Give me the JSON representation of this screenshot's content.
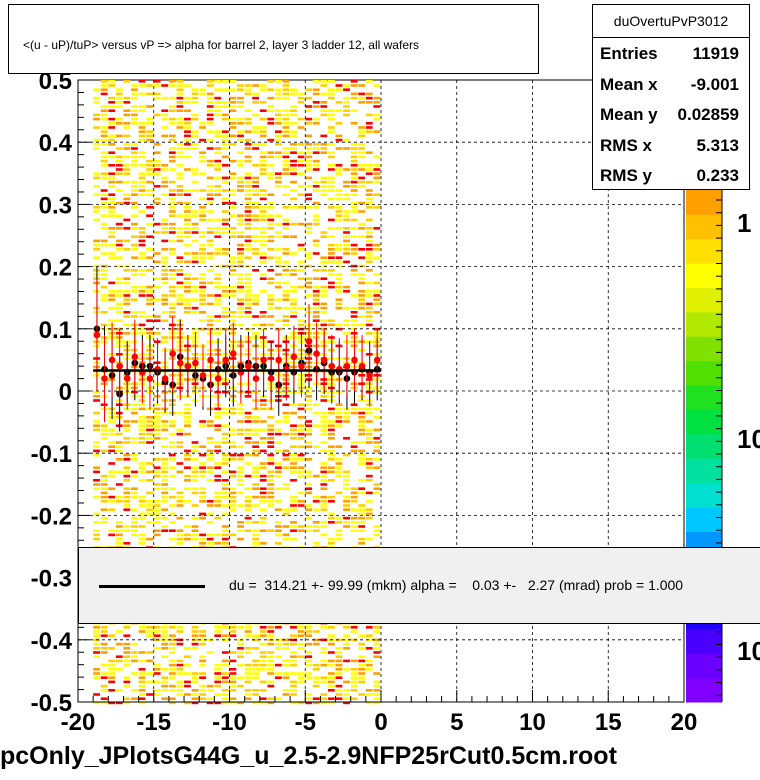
{
  "title": "<(u - uP)/tuP> versus   vP => alpha for barrel 2, layer 3 ladder 12, all wafers",
  "stats": {
    "name": "duOvertuPvP3012",
    "rows": [
      {
        "label": "Entries",
        "value": "11919"
      },
      {
        "label": "Mean x",
        "value": "-9.001"
      },
      {
        "label": "Mean y",
        "value": "0.02859"
      },
      {
        "label": "RMS x",
        "value": "5.313"
      },
      {
        "label": "RMS y",
        "value": "0.233"
      }
    ]
  },
  "legend_text": "du =  314.21 +- 99.99 (mkm) alpha =    0.03 +-   2.27 (mrad) prob = 1.000",
  "footer": "pcOnly_JPlotsG44G_u_2.5-2.9NFP25rCut0.5cm.root",
  "colors": {
    "fit_line": "#000000",
    "profile_black": "#000000",
    "profile_red": "#ff0000",
    "legend_bg": "#f0f0f0"
  },
  "chart_data": {
    "type": "heatmap",
    "xlim": [
      -20,
      20
    ],
    "ylim": [
      -0.5,
      0.5
    ],
    "x_ticks": [
      "-20",
      "-15",
      "-10",
      "-5",
      "0",
      "5",
      "10",
      "15",
      "20"
    ],
    "y_ticks": [
      "-0.5",
      "-0.4",
      "-0.3",
      "-0.2",
      "-0.1",
      "0",
      "0.1",
      "0.2",
      "0.3",
      "0.4",
      "0.5"
    ],
    "grid": true,
    "palette_labels": [
      "1",
      "10",
      "10"
    ],
    "occupied_x_range": [
      -19,
      0
    ],
    "fit": {
      "x": [
        -19,
        0
      ],
      "y": [
        0.033,
        0.033
      ]
    },
    "profile_black": [
      {
        "x": -18.75,
        "y": 0.1,
        "err": 0.1
      },
      {
        "x": -18.25,
        "y": 0.035,
        "err": 0.07
      },
      {
        "x": -17.75,
        "y": 0.025,
        "err": 0.07
      },
      {
        "x": -17.25,
        "y": -0.005,
        "err": 0.06
      },
      {
        "x": -16.75,
        "y": 0.03,
        "err": 0.05
      },
      {
        "x": -16.25,
        "y": 0.045,
        "err": 0.06
      },
      {
        "x": -15.75,
        "y": 0.04,
        "err": 0.05
      },
      {
        "x": -15.25,
        "y": 0.04,
        "err": 0.05
      },
      {
        "x": -14.75,
        "y": 0.03,
        "err": 0.05
      },
      {
        "x": -14.25,
        "y": 0.015,
        "err": 0.05
      },
      {
        "x": -13.75,
        "y": 0.01,
        "err": 0.05
      },
      {
        "x": -13.25,
        "y": 0.055,
        "err": 0.06
      },
      {
        "x": -12.75,
        "y": 0.04,
        "err": 0.05
      },
      {
        "x": -12.25,
        "y": 0.025,
        "err": 0.05
      },
      {
        "x": -11.75,
        "y": 0.02,
        "err": 0.05
      },
      {
        "x": -11.25,
        "y": 0.01,
        "err": 0.05
      },
      {
        "x": -10.75,
        "y": 0.035,
        "err": 0.05
      },
      {
        "x": -10.25,
        "y": 0.04,
        "err": 0.05
      },
      {
        "x": -9.75,
        "y": 0.025,
        "err": 0.05
      },
      {
        "x": -9.25,
        "y": 0.04,
        "err": 0.05
      },
      {
        "x": -8.75,
        "y": 0.045,
        "err": 0.05
      },
      {
        "x": -8.25,
        "y": 0.04,
        "err": 0.05
      },
      {
        "x": -7.75,
        "y": 0.04,
        "err": 0.05
      },
      {
        "x": -7.25,
        "y": 0.03,
        "err": 0.05
      },
      {
        "x": -6.75,
        "y": 0.01,
        "err": 0.05
      },
      {
        "x": -6.25,
        "y": 0.04,
        "err": 0.05
      },
      {
        "x": -5.75,
        "y": 0.03,
        "err": 0.05
      },
      {
        "x": -5.25,
        "y": 0.045,
        "err": 0.05
      },
      {
        "x": -4.75,
        "y": 0.065,
        "err": 0.06
      },
      {
        "x": -4.25,
        "y": 0.035,
        "err": 0.05
      },
      {
        "x": -3.75,
        "y": 0.045,
        "err": 0.05
      },
      {
        "x": -3.25,
        "y": 0.03,
        "err": 0.05
      },
      {
        "x": -2.75,
        "y": 0.03,
        "err": 0.05
      },
      {
        "x": -2.25,
        "y": 0.02,
        "err": 0.05
      },
      {
        "x": -1.75,
        "y": 0.03,
        "err": 0.05
      },
      {
        "x": -1.25,
        "y": 0.035,
        "err": 0.05
      },
      {
        "x": -0.75,
        "y": 0.03,
        "err": 0.05
      },
      {
        "x": -0.25,
        "y": 0.035,
        "err": 0.05
      }
    ],
    "profile_red": [
      {
        "x": -18.75,
        "y": 0.09,
        "err": 0.09
      },
      {
        "x": -18.25,
        "y": 0.02,
        "err": 0.07
      },
      {
        "x": -17.75,
        "y": 0.05,
        "err": 0.06
      },
      {
        "x": -17.25,
        "y": 0.04,
        "err": 0.06
      },
      {
        "x": -16.75,
        "y": 0.02,
        "err": 0.05
      },
      {
        "x": -16.25,
        "y": 0.055,
        "err": 0.06
      },
      {
        "x": -15.75,
        "y": 0.03,
        "err": 0.05
      },
      {
        "x": -15.25,
        "y": 0.02,
        "err": 0.05
      },
      {
        "x": -14.75,
        "y": 0.035,
        "err": 0.05
      },
      {
        "x": -14.25,
        "y": 0.02,
        "err": 0.05
      },
      {
        "x": -13.75,
        "y": 0.06,
        "err": 0.06
      },
      {
        "x": -13.25,
        "y": 0.045,
        "err": 0.06
      },
      {
        "x": -12.75,
        "y": 0.04,
        "err": 0.05
      },
      {
        "x": -12.25,
        "y": 0.045,
        "err": 0.05
      },
      {
        "x": -11.75,
        "y": 0.025,
        "err": 0.05
      },
      {
        "x": -11.25,
        "y": 0.05,
        "err": 0.05
      },
      {
        "x": -10.75,
        "y": 0.02,
        "err": 0.05
      },
      {
        "x": -10.25,
        "y": 0.05,
        "err": 0.05
      },
      {
        "x": -9.75,
        "y": 0.06,
        "err": 0.05
      },
      {
        "x": -9.25,
        "y": 0.03,
        "err": 0.05
      },
      {
        "x": -8.75,
        "y": 0.04,
        "err": 0.05
      },
      {
        "x": -8.25,
        "y": 0.02,
        "err": 0.05
      },
      {
        "x": -7.75,
        "y": 0.05,
        "err": 0.05
      },
      {
        "x": -7.25,
        "y": 0.02,
        "err": 0.05
      },
      {
        "x": -6.75,
        "y": 0.05,
        "err": 0.05
      },
      {
        "x": -6.25,
        "y": 0.035,
        "err": 0.05
      },
      {
        "x": -5.75,
        "y": 0.055,
        "err": 0.05
      },
      {
        "x": -5.25,
        "y": 0.04,
        "err": 0.05
      },
      {
        "x": -4.75,
        "y": 0.08,
        "err": 0.06
      },
      {
        "x": -4.25,
        "y": 0.06,
        "err": 0.05
      },
      {
        "x": -3.75,
        "y": 0.05,
        "err": 0.05
      },
      {
        "x": -3.25,
        "y": 0.04,
        "err": 0.05
      },
      {
        "x": -2.75,
        "y": 0.035,
        "err": 0.05
      },
      {
        "x": -2.25,
        "y": 0.04,
        "err": 0.05
      },
      {
        "x": -1.75,
        "y": 0.05,
        "err": 0.05
      },
      {
        "x": -1.25,
        "y": 0.04,
        "err": 0.05
      },
      {
        "x": -0.75,
        "y": 0.025,
        "err": 0.05
      },
      {
        "x": -0.25,
        "y": 0.05,
        "err": 0.05
      }
    ]
  }
}
